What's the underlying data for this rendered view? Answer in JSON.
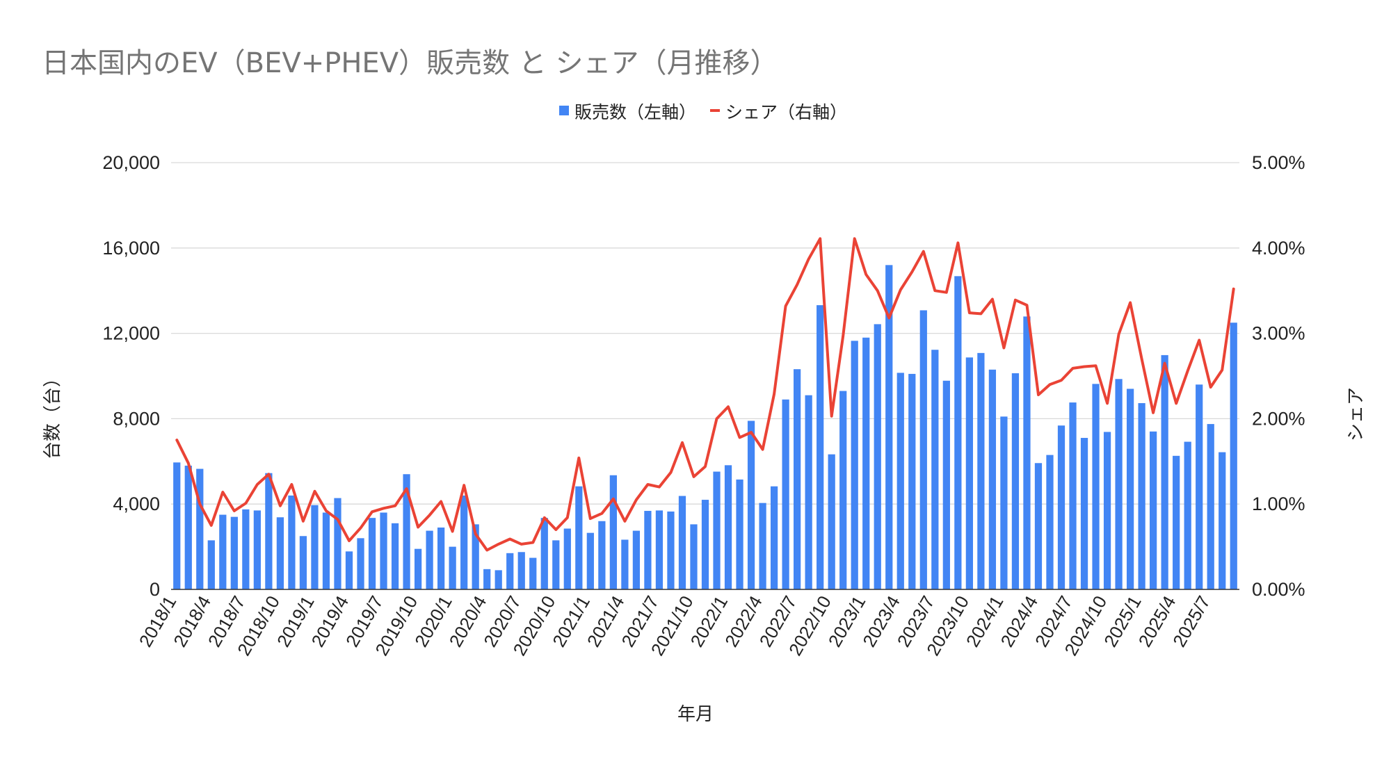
{
  "chart_data": {
    "type": "bar",
    "title": "日本国内のEV（BEV+PHEV）販売数 と シェア（月推移）",
    "xlabel": "年月",
    "ylabel": "台数（台）",
    "y2label": "シェア",
    "ylim": [
      0,
      20000
    ],
    "y2lim": [
      0,
      0.05
    ],
    "y_ticks": [
      "0",
      "4,000",
      "8,000",
      "12,000",
      "16,000",
      "20,000"
    ],
    "y2_ticks": [
      "0.00%",
      "1.00%",
      "2.00%",
      "3.00%",
      "4.00%",
      "5.00%"
    ],
    "grid": true,
    "legend_position": "top-center",
    "x_tick_labels": [
      "2018/1",
      "2018/4",
      "2018/7",
      "2018/10",
      "2019/1",
      "2019/4",
      "2019/7",
      "2019/10",
      "2020/1",
      "2020/4",
      "2020/7",
      "2020/10",
      "2021/1",
      "2021/4",
      "2021/7",
      "2021/10",
      "2022/1",
      "2022/4",
      "2022/7",
      "2022/10",
      "2023/1",
      "2023/4",
      "2023/7",
      "2023/10",
      "2024/1",
      "2024/4",
      "2024/7",
      "2024/10",
      "2025/1",
      "2025/4",
      "2025/7"
    ],
    "categories": [
      "2018/1",
      "2018/2",
      "2018/3",
      "2018/4",
      "2018/5",
      "2018/6",
      "2018/7",
      "2018/8",
      "2018/9",
      "2018/10",
      "2018/11",
      "2018/12",
      "2019/1",
      "2019/2",
      "2019/3",
      "2019/4",
      "2019/5",
      "2019/6",
      "2019/7",
      "2019/8",
      "2019/9",
      "2019/10",
      "2019/11",
      "2019/12",
      "2020/1",
      "2020/2",
      "2020/3",
      "2020/4",
      "2020/5",
      "2020/6",
      "2020/7",
      "2020/8",
      "2020/9",
      "2020/10",
      "2020/11",
      "2020/12",
      "2021/1",
      "2021/2",
      "2021/3",
      "2021/4",
      "2021/5",
      "2021/6",
      "2021/7",
      "2021/8",
      "2021/9",
      "2021/10",
      "2021/11",
      "2021/12",
      "2022/1",
      "2022/2",
      "2022/3",
      "2022/4",
      "2022/5",
      "2022/6",
      "2022/7",
      "2022/8",
      "2022/9",
      "2022/10",
      "2022/11",
      "2022/12",
      "2023/1",
      "2023/2",
      "2023/3",
      "2023/4",
      "2023/5",
      "2023/6",
      "2023/7",
      "2023/8",
      "2023/9",
      "2023/10",
      "2023/11",
      "2023/12",
      "2024/1",
      "2024/2",
      "2024/3",
      "2024/4",
      "2024/5",
      "2024/6",
      "2024/7",
      "2024/8",
      "2024/9",
      "2024/10",
      "2024/11",
      "2024/12",
      "2025/1",
      "2025/2",
      "2025/3",
      "2025/4",
      "2025/5",
      "2025/6",
      "2025/7",
      "2025/8",
      "2025/9"
    ],
    "series": [
      {
        "name": "販売数（左軸）",
        "type": "bar",
        "axis": "left",
        "color": "#4285f4",
        "values": [
          5950,
          5800,
          5650,
          2300,
          3500,
          3400,
          3750,
          3700,
          5450,
          3380,
          4400,
          2500,
          3950,
          3600,
          4280,
          1780,
          2400,
          3350,
          3600,
          3100,
          5400,
          1900,
          2750,
          2900,
          2000,
          4400,
          3050,
          950,
          900,
          1700,
          1750,
          1480,
          3350,
          2300,
          2850,
          4830,
          2650,
          3200,
          5350,
          2330,
          2750,
          3680,
          3700,
          3650,
          4380,
          3050,
          4200,
          5520,
          5820,
          5150,
          7900,
          4050,
          4830,
          8900,
          10320,
          9100,
          13320,
          6330,
          9300,
          11650,
          11800,
          12430,
          15200,
          10150,
          10100,
          13080,
          11230,
          9780,
          14680,
          10870,
          11080,
          10300,
          8100,
          10130,
          12790,
          5920,
          6300,
          7680,
          8760,
          7100,
          9630,
          7380,
          9860,
          9400,
          8730,
          7400,
          10980,
          6260,
          6920,
          9600,
          7750,
          6430,
          12500
        ]
      },
      {
        "name": "シェア（右軸）",
        "type": "line",
        "axis": "right",
        "color": "#ea4335",
        "values": [
          0.0175,
          0.0148,
          0.01,
          0.0075,
          0.0114,
          0.0092,
          0.0101,
          0.0123,
          0.0135,
          0.0098,
          0.0123,
          0.008,
          0.0115,
          0.0092,
          0.0082,
          0.0057,
          0.0072,
          0.0091,
          0.0095,
          0.0098,
          0.0118,
          0.0073,
          0.0087,
          0.0103,
          0.0068,
          0.0122,
          0.0065,
          0.0046,
          0.0053,
          0.0059,
          0.0053,
          0.0055,
          0.0084,
          0.007,
          0.0084,
          0.0154,
          0.0083,
          0.0089,
          0.0106,
          0.008,
          0.0105,
          0.0123,
          0.012,
          0.0137,
          0.0172,
          0.0132,
          0.0144,
          0.02,
          0.0214,
          0.0178,
          0.0184,
          0.0164,
          0.0229,
          0.0332,
          0.0357,
          0.0387,
          0.0411,
          0.0203,
          0.0297,
          0.0411,
          0.0369,
          0.035,
          0.0318,
          0.0351,
          0.0372,
          0.0396,
          0.035,
          0.0348,
          0.0406,
          0.0324,
          0.0323,
          0.034,
          0.0283,
          0.0339,
          0.0333,
          0.0228,
          0.024,
          0.0245,
          0.0259,
          0.0261,
          0.0262,
          0.0218,
          0.0299,
          0.0336,
          0.027,
          0.0207,
          0.0265,
          0.0218,
          0.0256,
          0.0292,
          0.0237,
          0.0257,
          0.0352
        ]
      }
    ]
  }
}
